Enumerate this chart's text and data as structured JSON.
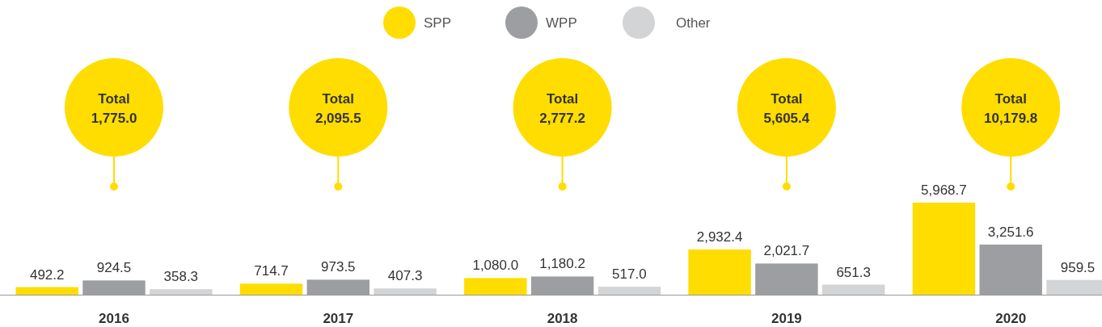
{
  "chart_data": {
    "type": "bar",
    "categories": [
      "2016",
      "2017",
      "2018",
      "2019",
      "2020"
    ],
    "series": [
      {
        "name": "SPP",
        "color": "#ffdd00",
        "values": [
          492.2,
          714.7,
          1080.0,
          2932.4,
          5968.7
        ],
        "value_labels": [
          "492.2",
          "714.7",
          "1,080.0",
          "2,932.4",
          "5,968.7"
        ]
      },
      {
        "name": "WPP",
        "color": "#9d9ea1",
        "values": [
          924.5,
          973.5,
          1180.2,
          2021.7,
          3251.6
        ],
        "value_labels": [
          "924.5",
          "973.5",
          "1,180.2",
          "2,021.7",
          "3,251.6"
        ]
      },
      {
        "name": "Other",
        "color": "#d3d4d6",
        "values": [
          358.3,
          407.3,
          517.0,
          651.3,
          959.5
        ],
        "value_labels": [
          "358.3",
          "407.3",
          "517.0",
          "651.3",
          "959.5"
        ]
      }
    ],
    "annotations": [
      "Total\n1,775.0",
      "Total\n2,095.5",
      "Total\n2,777.2",
      "Total\n5,605.4",
      "Total\n10,179.8"
    ],
    "legend": "top"
  }
}
